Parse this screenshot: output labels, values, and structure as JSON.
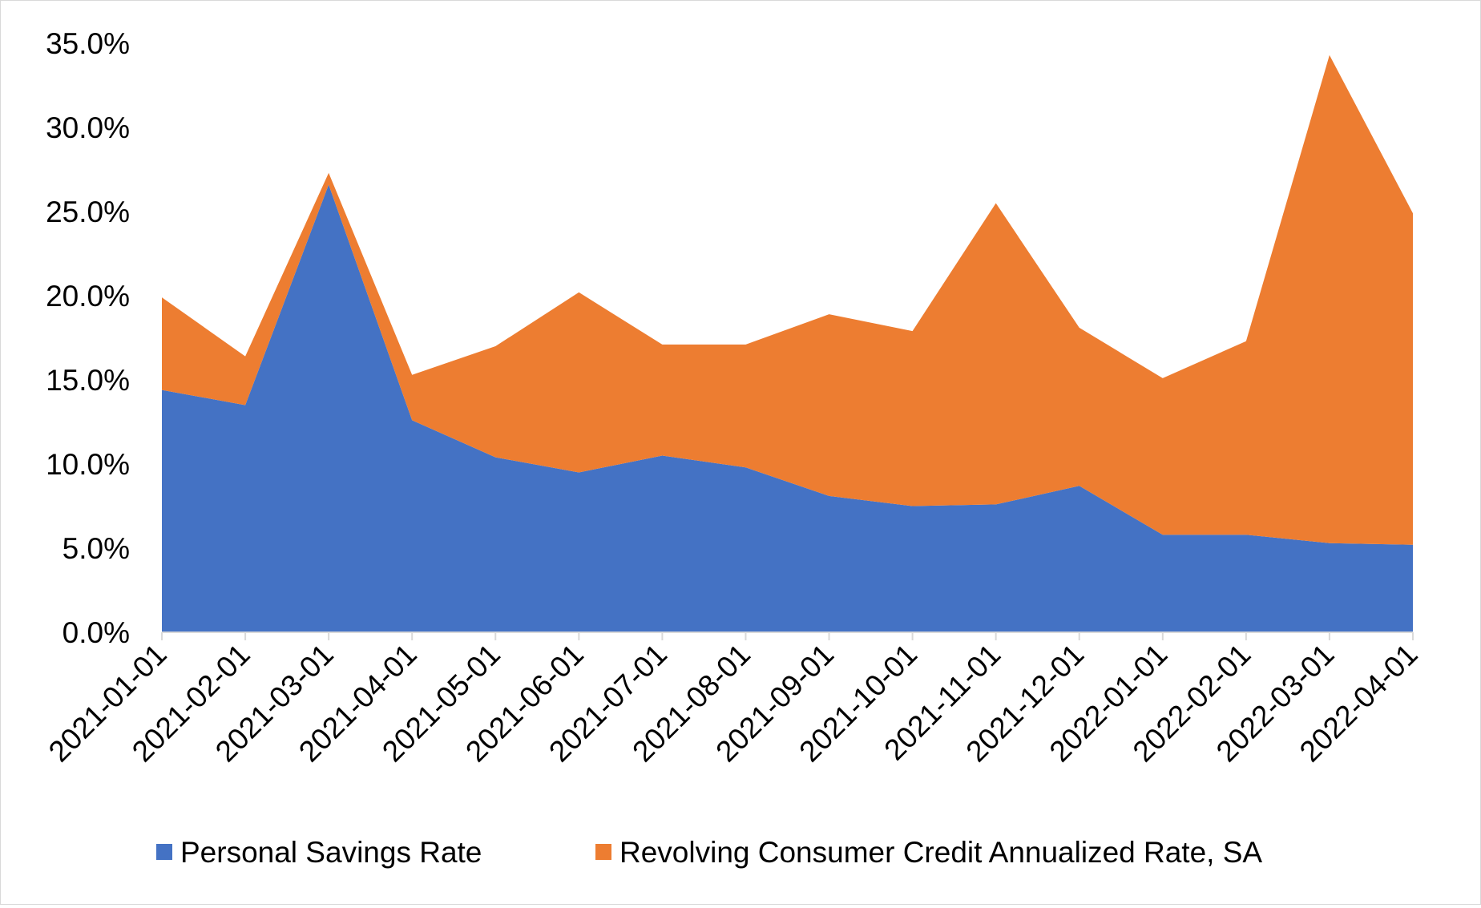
{
  "chart_data": {
    "type": "area",
    "stacked": true,
    "title": "",
    "xlabel": "",
    "ylabel": "",
    "x": [
      "2021-01-01",
      "2021-02-01",
      "2021-03-01",
      "2021-04-01",
      "2021-05-01",
      "2021-06-01",
      "2021-07-01",
      "2021-08-01",
      "2021-09-01",
      "2021-10-01",
      "2021-11-01",
      "2021-12-01",
      "2022-01-01",
      "2022-02-01",
      "2022-03-01",
      "2022-04-01"
    ],
    "series": [
      {
        "name": "Personal Savings Rate",
        "color": "#4472C4",
        "values": [
          14.4,
          13.5,
          26.6,
          12.6,
          10.4,
          9.5,
          10.5,
          9.8,
          8.1,
          7.5,
          7.6,
          8.7,
          5.8,
          5.8,
          5.3,
          5.2
        ]
      },
      {
        "name": "Revolving Consumer Credit Annualized Rate, SA",
        "color": "#ED7D31",
        "values": [
          5.5,
          2.9,
          0.7,
          2.7,
          6.6,
          10.7,
          6.6,
          7.3,
          10.8,
          10.4,
          17.9,
          9.4,
          9.3,
          11.5,
          29.0,
          19.7
        ]
      }
    ],
    "ylim": [
      0,
      35
    ],
    "yticks": [
      0,
      5,
      10,
      15,
      20,
      25,
      30,
      35
    ],
    "ytick_labels": [
      "0.0%",
      "5.0%",
      "10.0%",
      "15.0%",
      "20.0%",
      "25.0%",
      "30.0%",
      "35.0%"
    ],
    "grid": false,
    "legend_position": "bottom"
  }
}
